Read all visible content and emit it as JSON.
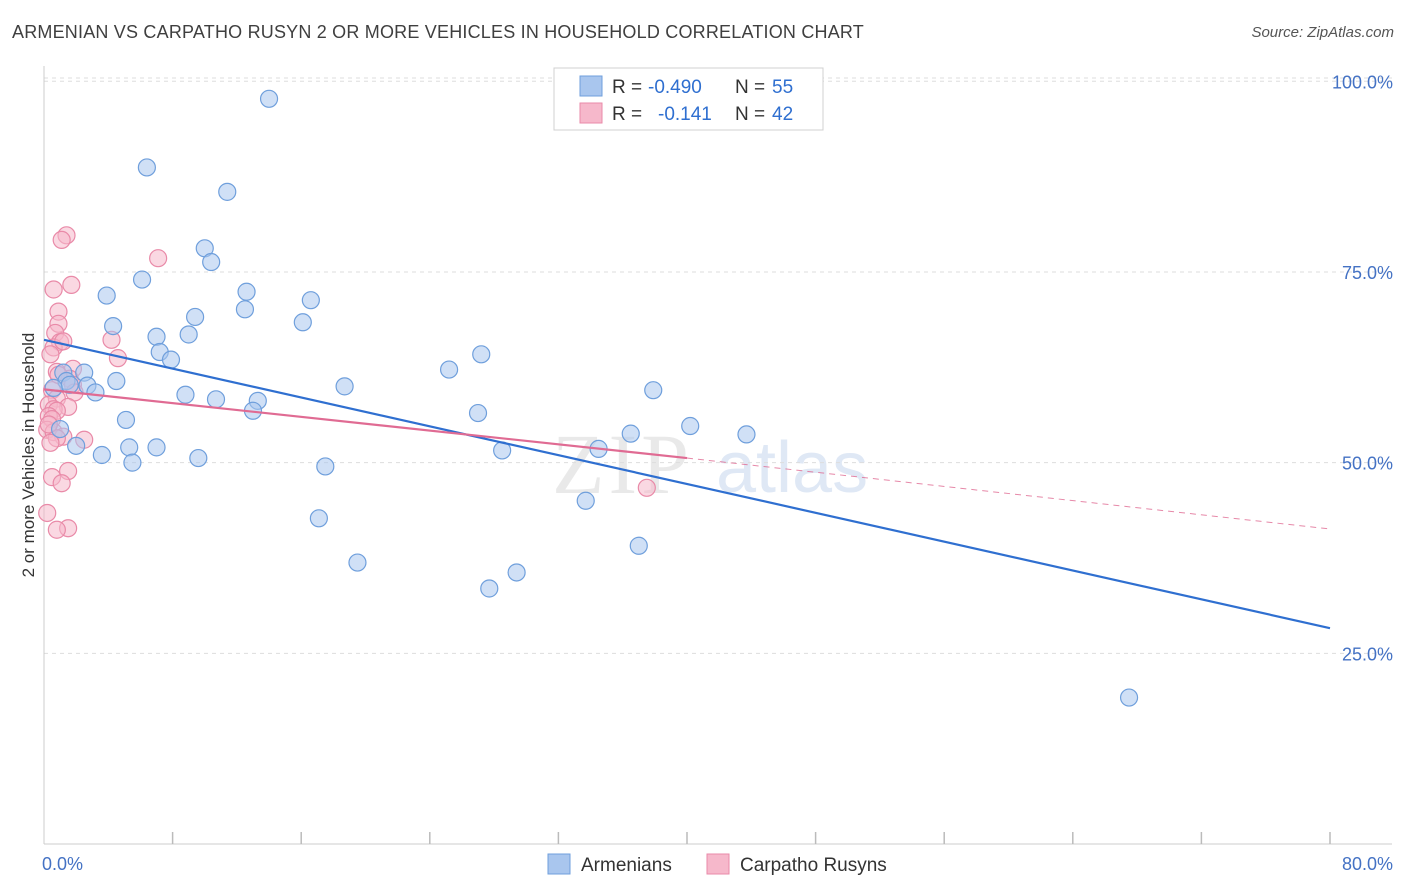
{
  "title": "ARMENIAN VS CARPATHO RUSYN 2 OR MORE VEHICLES IN HOUSEHOLD CORRELATION CHART",
  "source": "Source: ZipAtlas.com",
  "watermark": {
    "zip": "ZIP",
    "atlas": "atlas"
  },
  "colors": {
    "armenian_fill": "#a9c6ee",
    "armenian_stroke": "#6f9fdc",
    "armenian_line": "#2f6fd0",
    "rusyn_fill": "#f6b8cb",
    "rusyn_stroke": "#e98aa8",
    "rusyn_line": "#e06b93",
    "grid": "#dddddd",
    "tick_text": "#4472c4"
  },
  "legend": {
    "rows": [
      {
        "r_label": "R =",
        "r_value": "-0.490",
        "n_label": "N =",
        "n_value": "55"
      },
      {
        "r_label": "R =",
        "r_value": "-0.141",
        "n_label": "N =",
        "n_value": "42"
      }
    ]
  },
  "chart_data": {
    "type": "scatter",
    "title": "ARMENIAN VS CARPATHO RUSYN 2 OR MORE VEHICLES IN HOUSEHOLD CORRELATION CHART",
    "xlabel": "",
    "ylabel": "2 or more Vehicles in Household",
    "xlim": [
      0,
      80
    ],
    "ylim": [
      0,
      102
    ],
    "x_ticks": [
      {
        "value": 0,
        "label": "0.0%"
      },
      {
        "value": 80,
        "label": "80.0%"
      }
    ],
    "y_ticks": [
      {
        "value": 25,
        "label": "25.0%"
      },
      {
        "value": 50,
        "label": "50.0%"
      },
      {
        "value": 75,
        "label": "75.0%"
      },
      {
        "value": 100,
        "label": "100.0%"
      }
    ],
    "series": [
      {
        "name": "Armenians",
        "points": [
          [
            14.0,
            97.7
          ],
          [
            6.4,
            88.7
          ],
          [
            11.4,
            85.5
          ],
          [
            10.0,
            78.1
          ],
          [
            10.4,
            76.3
          ],
          [
            6.1,
            74.0
          ],
          [
            12.6,
            72.4
          ],
          [
            3.9,
            71.9
          ],
          [
            16.6,
            71.3
          ],
          [
            12.5,
            70.1
          ],
          [
            9.4,
            69.1
          ],
          [
            16.1,
            68.4
          ],
          [
            4.3,
            67.9
          ],
          [
            9.0,
            66.8
          ],
          [
            7.0,
            66.5
          ],
          [
            27.2,
            64.2
          ],
          [
            7.2,
            64.5
          ],
          [
            7.9,
            63.5
          ],
          [
            25.2,
            62.2
          ],
          [
            2.5,
            61.8
          ],
          [
            1.2,
            61.8
          ],
          [
            1.4,
            60.7
          ],
          [
            1.6,
            60.2
          ],
          [
            4.5,
            60.7
          ],
          [
            2.7,
            60.1
          ],
          [
            18.7,
            60.0
          ],
          [
            37.9,
            59.5
          ],
          [
            3.2,
            59.2
          ],
          [
            8.8,
            58.9
          ],
          [
            10.7,
            58.3
          ],
          [
            13.3,
            58.1
          ],
          [
            13.0,
            56.8
          ],
          [
            27.0,
            56.5
          ],
          [
            5.1,
            55.6
          ],
          [
            40.2,
            54.8
          ],
          [
            36.5,
            53.8
          ],
          [
            43.7,
            53.7
          ],
          [
            2.0,
            52.2
          ],
          [
            5.3,
            52.0
          ],
          [
            7.0,
            52.0
          ],
          [
            28.5,
            51.6
          ],
          [
            34.5,
            51.8
          ],
          [
            3.6,
            51.0
          ],
          [
            9.6,
            50.6
          ],
          [
            5.5,
            50.0
          ],
          [
            17.5,
            49.5
          ],
          [
            33.7,
            45.0
          ],
          [
            17.1,
            42.7
          ],
          [
            37.0,
            39.1
          ],
          [
            19.5,
            36.9
          ],
          [
            29.4,
            35.6
          ],
          [
            27.7,
            33.5
          ],
          [
            67.5,
            19.2
          ],
          [
            0.6,
            59.8
          ],
          [
            1.0,
            54.4
          ]
        ],
        "fit_line": {
          "x": [
            0,
            80
          ],
          "y": [
            66.1,
            28.3
          ]
        }
      },
      {
        "name": "Carpatho Rusyns",
        "points": [
          [
            1.4,
            79.8
          ],
          [
            1.1,
            79.2
          ],
          [
            7.1,
            76.8
          ],
          [
            1.7,
            73.3
          ],
          [
            0.6,
            72.7
          ],
          [
            0.9,
            69.8
          ],
          [
            0.9,
            68.2
          ],
          [
            0.7,
            67.0
          ],
          [
            4.2,
            66.1
          ],
          [
            1.0,
            65.8
          ],
          [
            0.6,
            65.1
          ],
          [
            0.4,
            64.2
          ],
          [
            4.6,
            63.7
          ],
          [
            0.8,
            61.9
          ],
          [
            1.8,
            62.3
          ],
          [
            1.6,
            61.0
          ],
          [
            1.8,
            60.2
          ],
          [
            0.5,
            59.5
          ],
          [
            1.9,
            59.2
          ],
          [
            0.8,
            58.4
          ],
          [
            1.5,
            57.3
          ],
          [
            0.3,
            57.6
          ],
          [
            0.6,
            57.0
          ],
          [
            0.8,
            56.8
          ],
          [
            0.3,
            56.1
          ],
          [
            0.5,
            55.7
          ],
          [
            0.2,
            54.3
          ],
          [
            0.6,
            54.0
          ],
          [
            1.2,
            53.4
          ],
          [
            0.8,
            53.2
          ],
          [
            2.5,
            53.0
          ],
          [
            0.4,
            52.6
          ],
          [
            1.5,
            48.9
          ],
          [
            0.5,
            48.1
          ],
          [
            1.1,
            47.3
          ],
          [
            37.5,
            46.7
          ],
          [
            0.2,
            43.4
          ],
          [
            1.5,
            41.4
          ],
          [
            0.8,
            41.2
          ],
          [
            0.3,
            55.0
          ],
          [
            1.2,
            65.9
          ],
          [
            0.9,
            61.5
          ]
        ],
        "fit_line": {
          "x": [
            0,
            40
          ],
          "y": [
            59.6,
            50.6
          ]
        },
        "fit_line_extension": {
          "x": [
            40,
            80
          ],
          "y": [
            50.6,
            41.3
          ]
        }
      }
    ],
    "legend_position": "top-center",
    "grid": true
  }
}
